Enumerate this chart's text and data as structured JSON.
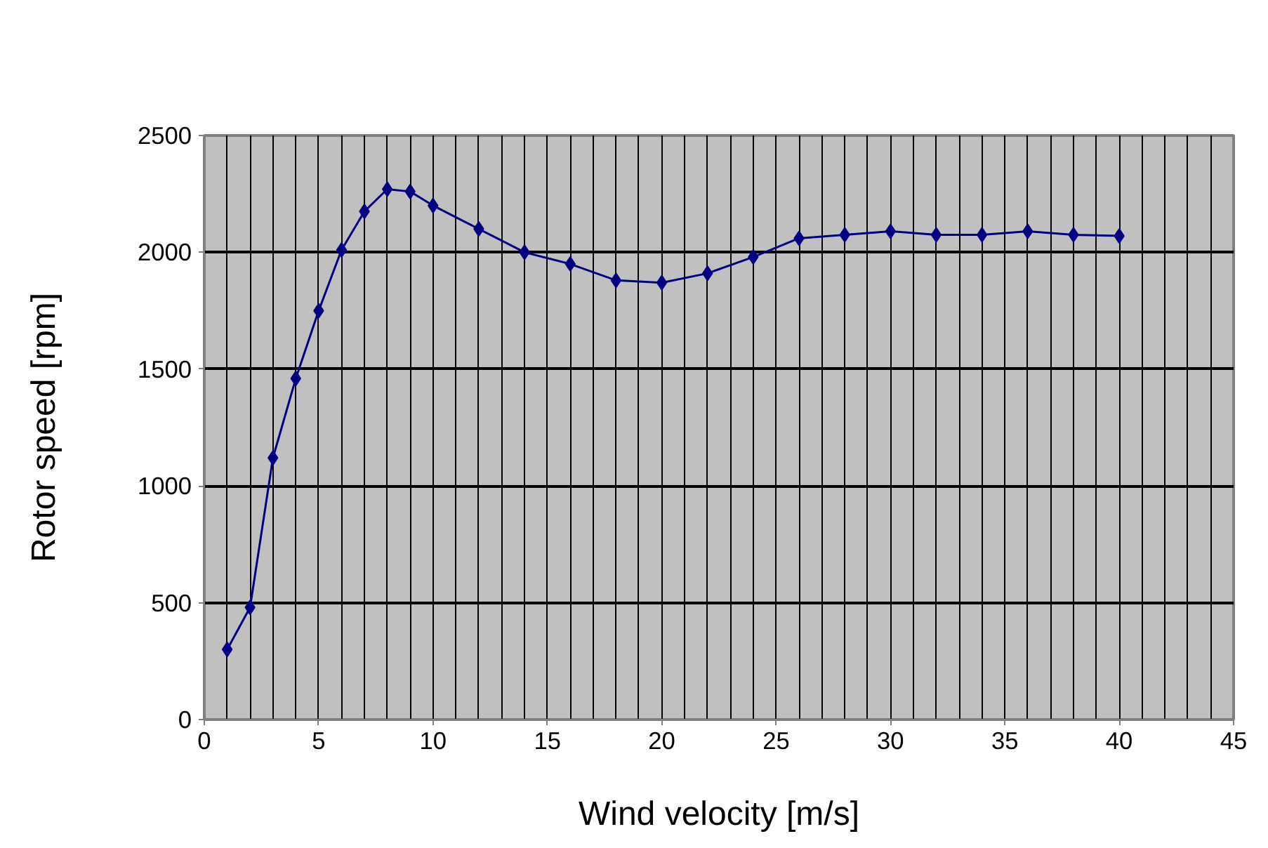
{
  "chart_data": {
    "type": "line",
    "xlabel": "Wind velocity [m/s]",
    "ylabel": "Rotor speed [rpm]",
    "x": [
      1,
      2,
      3,
      4,
      5,
      6,
      7,
      8,
      9,
      10,
      12,
      14,
      16,
      18,
      20,
      22,
      24,
      26,
      28,
      30,
      32,
      34,
      36,
      38,
      40
    ],
    "series": [
      {
        "color": "#000080",
        "values": [
          300,
          480,
          1120,
          1460,
          1750,
          2010,
          2175,
          2270,
          2260,
          2200,
          2100,
          2000,
          1950,
          1880,
          1870,
          1910,
          1980,
          2060,
          2075,
          2090,
          2075,
          2075,
          2090,
          2075,
          2070
        ]
      }
    ],
    "xlim": [
      0,
      45
    ],
    "xticks": [
      0,
      5,
      10,
      15,
      20,
      25,
      30,
      35,
      40,
      45
    ],
    "ylim": [
      0,
      2500
    ],
    "yticks": [
      0,
      500,
      1000,
      1500,
      2000,
      2500
    ],
    "grid": true,
    "marker": "diamond",
    "line_style": "solid"
  }
}
